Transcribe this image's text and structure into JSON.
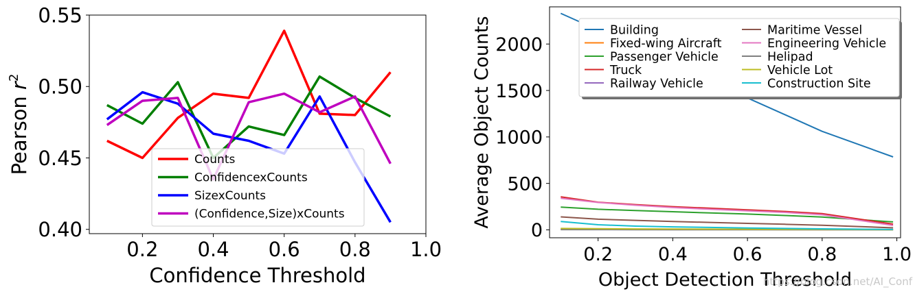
{
  "chart_data": [
    {
      "type": "line",
      "xlabel": "Confidence Threshold",
      "ylabel": "Pearson r²",
      "ylabel_base": "Pearson ",
      "ylabel_var": "r",
      "ylabel_sup": "2",
      "xlim": [
        0.05,
        1.0
      ],
      "ylim": [
        0.397,
        0.55
      ],
      "xticks": [
        0.2,
        0.4,
        0.6,
        0.8,
        1.0
      ],
      "xtick_labels": [
        "0.2",
        "0.4",
        "0.6",
        "0.8",
        "1.0"
      ],
      "yticks": [
        0.4,
        0.45,
        0.5,
        0.55
      ],
      "ytick_labels": [
        "0.40",
        "0.45",
        "0.50",
        "0.55"
      ],
      "x": [
        0.1,
        0.2,
        0.3,
        0.4,
        0.5,
        0.6,
        0.7,
        0.8,
        0.9
      ],
      "legend_position": "lower-center",
      "series": [
        {
          "name": "Counts",
          "color": "#ff0000",
          "values": [
            0.462,
            0.45,
            0.478,
            0.495,
            0.492,
            0.539,
            0.481,
            0.48,
            0.51
          ]
        },
        {
          "name": "ConfidencexCounts",
          "color": "#007f00",
          "values": [
            0.487,
            0.474,
            0.503,
            0.45,
            0.472,
            0.466,
            0.507,
            0.492,
            0.479
          ]
        },
        {
          "name": "SizexCounts",
          "color": "#0000ff",
          "values": [
            0.477,
            0.496,
            0.488,
            0.467,
            0.462,
            0.453,
            0.493,
            0.447,
            0.405
          ]
        },
        {
          "name": "(Confidence,Size)xCounts",
          "color": "#bf00bf",
          "values": [
            0.473,
            0.49,
            0.492,
            0.435,
            0.489,
            0.495,
            0.482,
            0.493,
            0.446
          ]
        }
      ]
    },
    {
      "type": "line",
      "xlabel": "Object Detection Threshold",
      "ylabel": "Average Object Counts",
      "xlim": [
        0.07,
        1.01
      ],
      "ylim": [
        -85,
        2400
      ],
      "xticks": [
        0.2,
        0.4,
        0.6,
        0.8,
        1.0
      ],
      "xtick_labels": [
        "0.2",
        "0.4",
        "0.6",
        "0.8",
        "1.0"
      ],
      "yticks": [
        0,
        500,
        1000,
        1500,
        2000
      ],
      "ytick_labels": [
        "0",
        "500",
        "1000",
        "1500",
        "2000"
      ],
      "x": [
        0.1,
        0.2,
        0.3,
        0.4,
        0.5,
        0.6,
        0.7,
        0.8,
        0.99
      ],
      "legend_position": "top",
      "series": [
        {
          "name": "Building",
          "color": "#1f77b4",
          "values": [
            2330,
            2150,
            1960,
            1780,
            1590,
            1420,
            1240,
            1060,
            785
          ]
        },
        {
          "name": "Fixed-wing Aircraft",
          "color": "#ff7f0e",
          "values": [
            8,
            7,
            6,
            6,
            5,
            5,
            4,
            4,
            2
          ]
        },
        {
          "name": "Passenger Vehicle",
          "color": "#2ca02c",
          "values": [
            245,
            222,
            208,
            195,
            182,
            170,
            155,
            138,
            85
          ]
        },
        {
          "name": "Truck",
          "color": "#d62728",
          "values": [
            355,
            298,
            272,
            250,
            233,
            215,
            198,
            175,
            62
          ]
        },
        {
          "name": "Railway Vehicle",
          "color": "#9467bd",
          "values": [
            5,
            4,
            4,
            3,
            3,
            3,
            2,
            2,
            1
          ]
        },
        {
          "name": "Maritime Vessel",
          "color": "#8c564b",
          "values": [
            140,
            115,
            102,
            90,
            80,
            70,
            60,
            50,
            22
          ]
        },
        {
          "name": "Engineering Vehicle",
          "color": "#e377c2",
          "values": [
            340,
            295,
            265,
            240,
            222,
            205,
            188,
            163,
            48
          ]
        },
        {
          "name": "Helipad",
          "color": "#7f7f7f",
          "values": [
            3,
            3,
            2,
            2,
            2,
            2,
            1,
            1,
            1
          ]
        },
        {
          "name": "Vehicle Lot",
          "color": "#bcbd22",
          "values": [
            15,
            12,
            10,
            9,
            8,
            7,
            6,
            5,
            2
          ]
        },
        {
          "name": "Construction Site",
          "color": "#17becf",
          "values": [
            90,
            55,
            40,
            32,
            26,
            20,
            15,
            11,
            4
          ]
        }
      ]
    }
  ],
  "watermark": "https://blog.csdn.net/AI_Conf"
}
